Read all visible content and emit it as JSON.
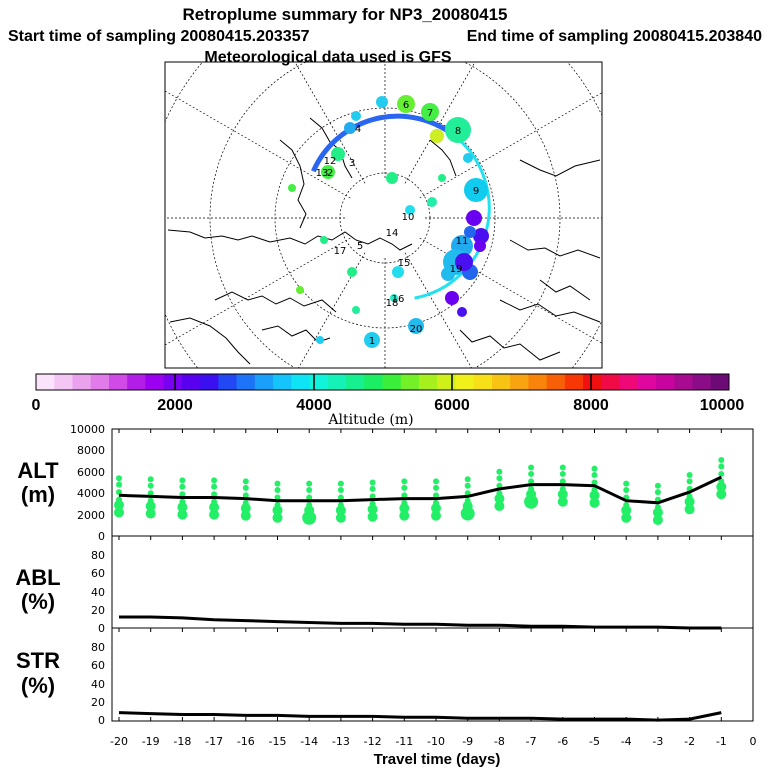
{
  "header": {
    "title": "Retroplume summary for NP3_20080415",
    "start": "Start time of sampling 20080415.203357",
    "end": "End time of sampling 20080415.203840",
    "met": "Meteorological data used is GFS"
  },
  "colorbar": {
    "label": "Altitude (m)",
    "ticks": [
      "0",
      "2000",
      "4000",
      "6000",
      "8000",
      "10000"
    ],
    "colors": [
      "#fbe3fb",
      "#f4c6f4",
      "#eaa2ef",
      "#e07be9",
      "#cf4ae6",
      "#b21ee8",
      "#9b00f0",
      "#7a00f2",
      "#5a00f0",
      "#3a10f0",
      "#2248f4",
      "#1e74f8",
      "#1aa0fa",
      "#14c4fa",
      "#0ee4f6",
      "#10f4dc",
      "#14f2b8",
      "#16f08e",
      "#1cee64",
      "#3aee3a",
      "#74f028",
      "#a6f01e",
      "#d0f01a",
      "#f0f01a",
      "#f8e018",
      "#f8c414",
      "#f8a410",
      "#f8840c",
      "#f86008",
      "#f83804",
      "#f01010",
      "#f00a46",
      "#ee0878",
      "#e006a0",
      "#c8049e",
      "#a80a92",
      "#8a0c86",
      "#6e0a76"
    ]
  },
  "map": {
    "labels": [
      {
        "t": "6",
        "c": "#66ee33"
      },
      {
        "t": "7",
        "c": "#55ee44"
      },
      {
        "t": "8",
        "c": "#33ee99"
      },
      {
        "t": "9",
        "c": "#11ccee"
      },
      {
        "t": "10",
        "c": "#22aaee"
      },
      {
        "t": "11",
        "c": "#2266ee"
      },
      {
        "t": "12",
        "c": "#22bbee"
      },
      {
        "t": "13",
        "c": "#22ddee"
      },
      {
        "t": "14",
        "c": "#22eeaa"
      },
      {
        "t": "15",
        "c": "#22eecc"
      },
      {
        "t": "16",
        "c": "#22ddee"
      },
      {
        "t": "17",
        "c": "#22ccee"
      },
      {
        "t": "18",
        "c": "#22ccee"
      },
      {
        "t": "19",
        "c": "#22ddee"
      },
      {
        "t": "20",
        "c": "#22ee88"
      },
      {
        "t": "1",
        "c": "#22ee77"
      },
      {
        "t": "2",
        "c": "#44ee44"
      },
      {
        "t": "3",
        "c": "#99ee22"
      },
      {
        "t": "4",
        "c": "#aaee22"
      },
      {
        "t": "5",
        "c": "#88ee22"
      }
    ]
  },
  "panels": {
    "alt": {
      "label1": "ALT",
      "label2": "(m)",
      "yticks": [
        "10000",
        "8000",
        "6000",
        "4000",
        "2000",
        "0"
      ]
    },
    "abl": {
      "label1": "ABL",
      "label2": "(%)",
      "yticks": [
        "80",
        "60",
        "40",
        "20",
        "0"
      ]
    },
    "str": {
      "label1": "STR",
      "label2": "(%)",
      "yticks": [
        "80",
        "60",
        "40",
        "20",
        "0"
      ]
    }
  },
  "xaxis": {
    "label": "Travel time (days)",
    "ticks": [
      "-20",
      "-19",
      "-18",
      "-17",
      "-16",
      "-15",
      "-14",
      "-13",
      "-12",
      "-11",
      "-10",
      "-9",
      "-8",
      "-7",
      "-6",
      "-5",
      "-4",
      "-3",
      "-2",
      "-1",
      "0"
    ]
  },
  "chart_data": [
    {
      "type": "line",
      "title": "ALT",
      "xlabel": "Travel time (days)",
      "ylabel": "(m)",
      "ylim": [
        0,
        10000
      ],
      "xlim": [
        -20,
        0
      ],
      "x": [
        -20,
        -19,
        -18,
        -17,
        -16,
        -15,
        -14,
        -13,
        -12,
        -11,
        -10,
        -9,
        -8,
        -7,
        -6,
        -5,
        -4,
        -3,
        -2,
        -1
      ],
      "values": [
        3800,
        3700,
        3600,
        3600,
        3500,
        3300,
        3300,
        3300,
        3400,
        3500,
        3500,
        3700,
        4400,
        4800,
        4800,
        4700,
        3300,
        3100,
        4100,
        5500
      ]
    },
    {
      "type": "line",
      "title": "ABL",
      "xlabel": "Travel time (days)",
      "ylabel": "(%)",
      "ylim": [
        0,
        100
      ],
      "xlim": [
        -20,
        0
      ],
      "x": [
        -20,
        -19,
        -18,
        -17,
        -16,
        -15,
        -14,
        -13,
        -12,
        -11,
        -10,
        -9,
        -8,
        -7,
        -6,
        -5,
        -4,
        -3,
        -2,
        -1
      ],
      "values": [
        12,
        12,
        11,
        9,
        8,
        7,
        6,
        5,
        5,
        4,
        4,
        3,
        3,
        2,
        2,
        1,
        1,
        1,
        0,
        0
      ]
    },
    {
      "type": "line",
      "title": "STR",
      "xlabel": "Travel time (days)",
      "ylabel": "(%)",
      "ylim": [
        0,
        100
      ],
      "xlim": [
        -20,
        0
      ],
      "x": [
        -20,
        -19,
        -18,
        -17,
        -16,
        -15,
        -14,
        -13,
        -12,
        -11,
        -10,
        -9,
        -8,
        -7,
        -6,
        -5,
        -4,
        -3,
        -2,
        -1
      ],
      "values": [
        9,
        8,
        7,
        7,
        6,
        6,
        5,
        5,
        5,
        4,
        4,
        3,
        3,
        3,
        2,
        2,
        2,
        1,
        2,
        9
      ]
    }
  ]
}
